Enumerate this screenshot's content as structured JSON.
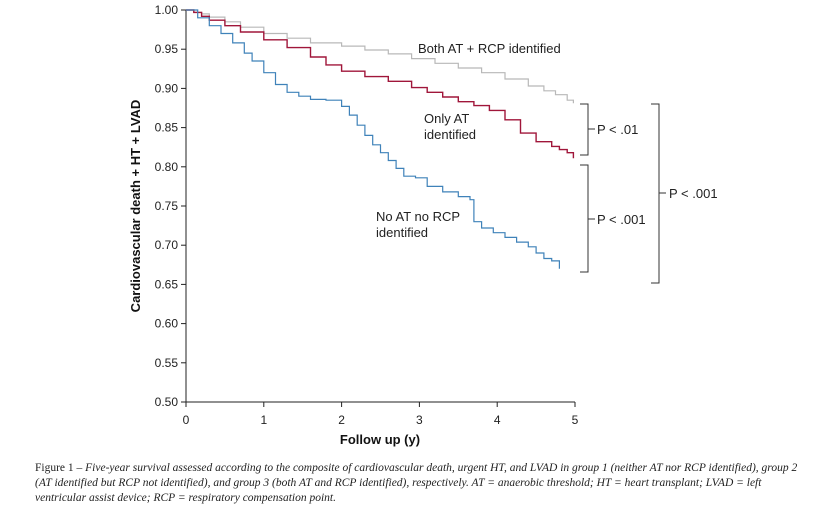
{
  "chart_data": {
    "type": "line",
    "xlabel": "Follow up (y)",
    "ylabel": "Cardiovascular death + HT + LVAD",
    "xlim": [
      0,
      5
    ],
    "ylim": [
      0.5,
      1.0
    ],
    "xticks": [
      "0",
      "1",
      "2",
      "3",
      "4",
      "5"
    ],
    "yticks": [
      "0.50",
      "0.55",
      "0.60",
      "0.65",
      "0.70",
      "0.75",
      "0.80",
      "0.85",
      "0.90",
      "0.95",
      "1.00"
    ],
    "grid": false,
    "series": [
      {
        "name": "Both AT + RCP identified",
        "color": "#b8b8b8",
        "x": [
          0,
          0.1,
          0.2,
          0.3,
          0.5,
          0.7,
          1.0,
          1.3,
          1.6,
          2.0,
          2.3,
          2.6,
          2.9,
          3.2,
          3.5,
          3.8,
          4.1,
          4.4,
          4.6,
          4.75,
          4.9,
          4.98
        ],
        "y": [
          1.0,
          0.997,
          0.995,
          0.991,
          0.985,
          0.978,
          0.97,
          0.964,
          0.958,
          0.954,
          0.949,
          0.944,
          0.938,
          0.932,
          0.926,
          0.92,
          0.912,
          0.903,
          0.897,
          0.892,
          0.885,
          0.881
        ]
      },
      {
        "name": "Only AT identified",
        "color": "#a0163a",
        "x": [
          0,
          0.1,
          0.2,
          0.3,
          0.5,
          0.7,
          1.0,
          1.3,
          1.6,
          1.8,
          2.0,
          2.3,
          2.6,
          2.9,
          3.1,
          3.3,
          3.5,
          3.7,
          3.9,
          4.1,
          4.3,
          4.5,
          4.7,
          4.8,
          4.9,
          4.98
        ],
        "y": [
          1.0,
          0.997,
          0.992,
          0.987,
          0.98,
          0.972,
          0.962,
          0.952,
          0.94,
          0.93,
          0.922,
          0.915,
          0.909,
          0.901,
          0.895,
          0.889,
          0.883,
          0.878,
          0.872,
          0.86,
          0.843,
          0.832,
          0.826,
          0.822,
          0.818,
          0.811
        ]
      },
      {
        "name": "No AT no RCP identified",
        "color": "#3f82b9",
        "x": [
          0,
          0.15,
          0.3,
          0.45,
          0.6,
          0.75,
          0.85,
          1.0,
          1.15,
          1.3,
          1.45,
          1.6,
          1.8,
          2.0,
          2.1,
          2.2,
          2.3,
          2.4,
          2.5,
          2.6,
          2.7,
          2.8,
          2.95,
          3.1,
          3.3,
          3.5,
          3.65,
          3.7,
          3.8,
          3.95,
          4.1,
          4.25,
          4.4,
          4.5,
          4.6,
          4.7,
          4.8
        ],
        "y": [
          1.0,
          0.99,
          0.98,
          0.97,
          0.958,
          0.945,
          0.935,
          0.92,
          0.905,
          0.895,
          0.89,
          0.886,
          0.885,
          0.877,
          0.866,
          0.853,
          0.84,
          0.828,
          0.818,
          0.808,
          0.798,
          0.788,
          0.786,
          0.775,
          0.768,
          0.762,
          0.758,
          0.73,
          0.722,
          0.716,
          0.71,
          0.704,
          0.698,
          0.69,
          0.683,
          0.68,
          0.67
        ]
      }
    ],
    "annotations": [
      {
        "text": "Both AT + RCP identified"
      },
      {
        "text": "Only AT"
      },
      {
        "text": "identified"
      },
      {
        "text": "No AT no RCP"
      },
      {
        "text": "identified"
      }
    ],
    "comparisons": [
      "P < .01",
      "P < .001",
      "P < .001"
    ]
  },
  "caption": {
    "lead": "Figure 1 – ",
    "body": "Five-year survival assessed according to the composite of cardiovascular death, urgent HT, and LVAD in group 1 (neither AT nor RCP identified), group 2 (AT identified but RCP not identified), and group 3 (both AT and RCP identified), respectively. AT = anaerobic threshold; HT = heart transplant; LVAD = left ventricular assist device; RCP = respiratory compensation point."
  }
}
